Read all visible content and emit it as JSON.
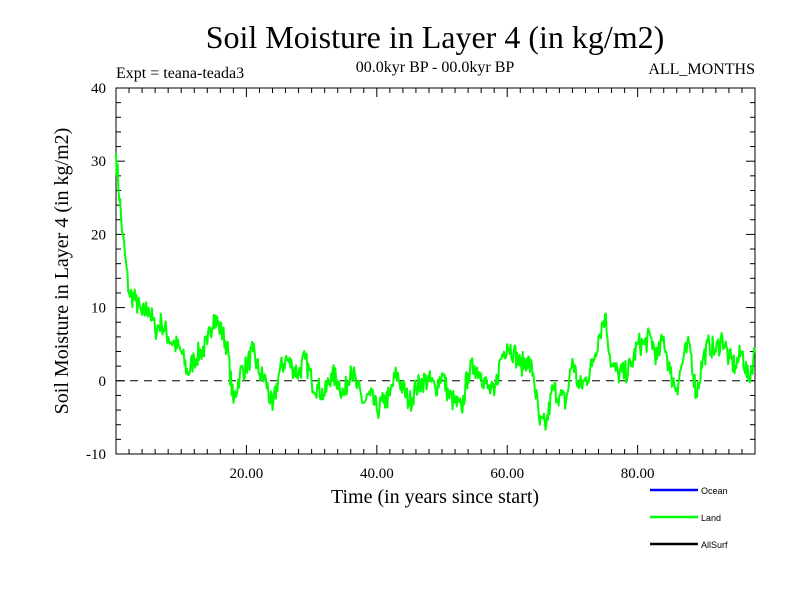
{
  "chart_data": {
    "type": "line",
    "title": "Soil Moisture in Layer 4 (in kg/m2)",
    "subtitle_left": "Expt = teana-teada3",
    "subtitle_center": "00.0kyr BP - 00.0kyr BP",
    "subtitle_right": "ALL_MONTHS",
    "xlabel": "Time (in years since start)",
    "ylabel": "Soil Moisture in Layer 4 (in kg/m2)",
    "xlim": [
      0,
      98
    ],
    "ylim": [
      -10,
      40
    ],
    "x_ticks": [
      20,
      40,
      60,
      80
    ],
    "x_tick_labels": [
      "20.00",
      "40.00",
      "60.00",
      "80.00"
    ],
    "y_ticks": [
      -10,
      0,
      10,
      20,
      30,
      40
    ],
    "y_tick_labels": [
      "-10",
      "0",
      "10",
      "20",
      "30",
      "40"
    ],
    "reference_line": 0,
    "legend": [
      {
        "name": "Ocean",
        "color": "#0000ff"
      },
      {
        "name": "Land",
        "color": "#00ff00"
      },
      {
        "name": "AllSurf",
        "color": "#000000"
      }
    ],
    "series": [
      {
        "name": "Land",
        "color": "#00ff00",
        "x": [
          0,
          1,
          2,
          3,
          4,
          5,
          6,
          7,
          8,
          9,
          10,
          11,
          12,
          13,
          14,
          15,
          16,
          17,
          18,
          19,
          20,
          21,
          22,
          23,
          24,
          25,
          26,
          27,
          28,
          29,
          30,
          31,
          32,
          33,
          34,
          35,
          36,
          37,
          38,
          39,
          40,
          41,
          42,
          43,
          44,
          45,
          46,
          47,
          48,
          49,
          50,
          51,
          52,
          53,
          54,
          55,
          56,
          57,
          58,
          59,
          60,
          61,
          62,
          63,
          64,
          65,
          66,
          67,
          68,
          69,
          70,
          71,
          72,
          73,
          74,
          75,
          76,
          77,
          78,
          79,
          80,
          81,
          82,
          83,
          84,
          85,
          86,
          87,
          88,
          89,
          90,
          91,
          92,
          93,
          94,
          95,
          96,
          97,
          98
        ],
        "values": [
          31,
          20,
          12,
          11,
          9,
          10,
          7,
          8,
          6,
          5,
          4,
          1,
          3,
          4,
          5,
          9,
          7,
          5,
          -3,
          1,
          2,
          4,
          1,
          0,
          -4,
          1,
          3,
          2,
          1,
          3,
          0,
          -1,
          -2,
          1,
          0,
          -2,
          2,
          -1,
          -3,
          -2,
          -4,
          -3,
          -2,
          1,
          -1,
          -3,
          -1,
          0,
          0,
          -1,
          1,
          -2,
          -3,
          -4,
          1,
          2,
          1,
          -1,
          -2,
          3,
          5,
          4,
          2,
          3,
          1,
          -6,
          -6,
          -1,
          -2,
          -3,
          3,
          -1,
          0,
          2,
          6,
          9,
          2,
          1,
          1,
          2,
          5,
          5,
          6,
          3,
          6,
          1,
          -1,
          3,
          5,
          -2,
          3,
          5,
          4,
          6,
          3,
          2,
          4,
          0,
          4
        ]
      }
    ]
  }
}
